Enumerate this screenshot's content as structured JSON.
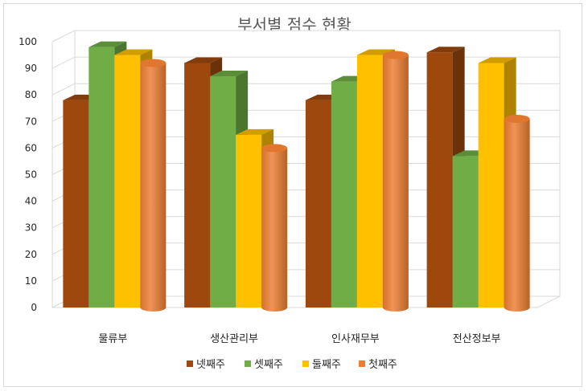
{
  "chart_data": {
    "type": "bar",
    "title": "부서별 점수 현황",
    "categories": [
      "물류부",
      "생산관리부",
      "인사재무부",
      "전산정보부"
    ],
    "series": [
      {
        "name": "넷째주",
        "values": [
          78,
          92,
          78,
          96
        ],
        "color": "#9E480E",
        "shape": "box"
      },
      {
        "name": "셋째주",
        "values": [
          98,
          87,
          85,
          57
        ],
        "color": "#70AD47",
        "shape": "box"
      },
      {
        "name": "둘째주",
        "values": [
          95,
          65,
          95,
          92
        ],
        "color": "#FFC000",
        "shape": "box"
      },
      {
        "name": "첫째주",
        "values": [
          92,
          60,
          95,
          71
        ],
        "color": "#ED7D31",
        "shape": "cylinder"
      }
    ],
    "ylim": [
      0,
      100
    ],
    "yticks": [
      0,
      10,
      20,
      30,
      40,
      50,
      60,
      70,
      80,
      90,
      100
    ],
    "grid": true,
    "legend": "bottom",
    "style": "3d-clustered"
  }
}
